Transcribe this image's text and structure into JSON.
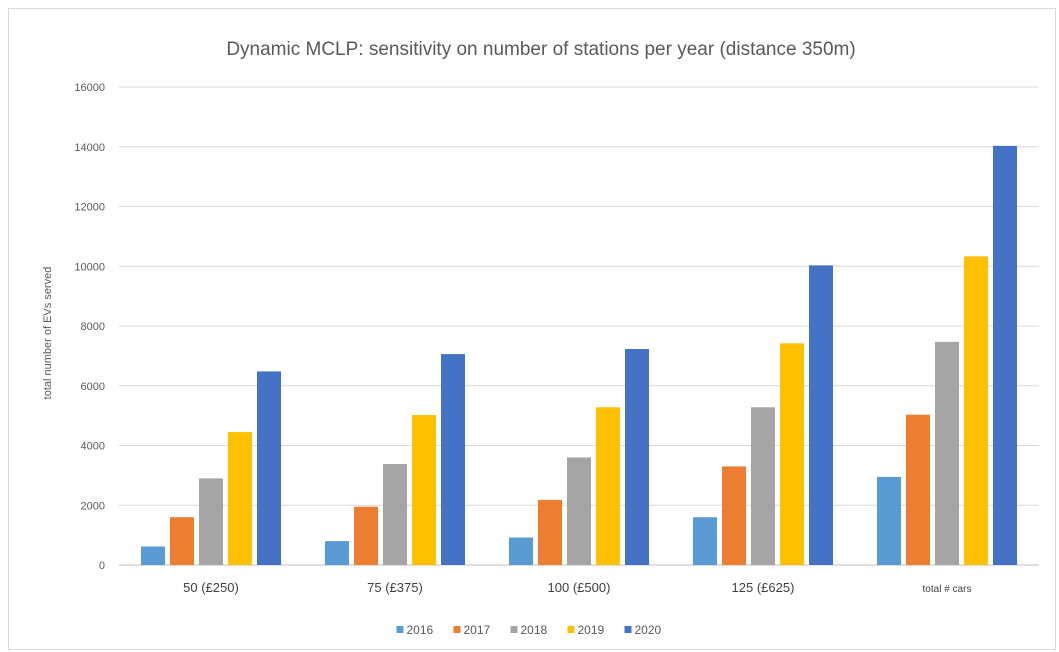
{
  "chart_data": {
    "type": "bar",
    "title": "Dynamic MCLP: sensitivity on number of stations per year (distance 350m)",
    "xlabel": "",
    "ylabel": "total number of EVs served",
    "ylim": [
      0,
      16000
    ],
    "yticks": [
      0,
      2000,
      4000,
      6000,
      8000,
      10000,
      12000,
      14000,
      16000
    ],
    "grid": true,
    "legend_position": "bottom",
    "categories": [
      "50  (£250)",
      "75  (£375)",
      "100  (£500)",
      "125  (£625)",
      "total # cars"
    ],
    "series": [
      {
        "name": "2016",
        "color": "#5b9bd5",
        "values": [
          620,
          800,
          920,
          1600,
          2950
        ]
      },
      {
        "name": "2017",
        "color": "#ed7d31",
        "values": [
          1600,
          1950,
          2180,
          3300,
          5030
        ]
      },
      {
        "name": "2018",
        "color": "#a5a5a5",
        "values": [
          2900,
          3380,
          3600,
          5280,
          7470
        ]
      },
      {
        "name": "2019",
        "color": "#ffc000",
        "values": [
          4450,
          5020,
          5280,
          7420,
          10330
        ]
      },
      {
        "name": "2020",
        "color": "#4472c4",
        "values": [
          6480,
          7060,
          7230,
          10030,
          14030
        ]
      }
    ]
  }
}
